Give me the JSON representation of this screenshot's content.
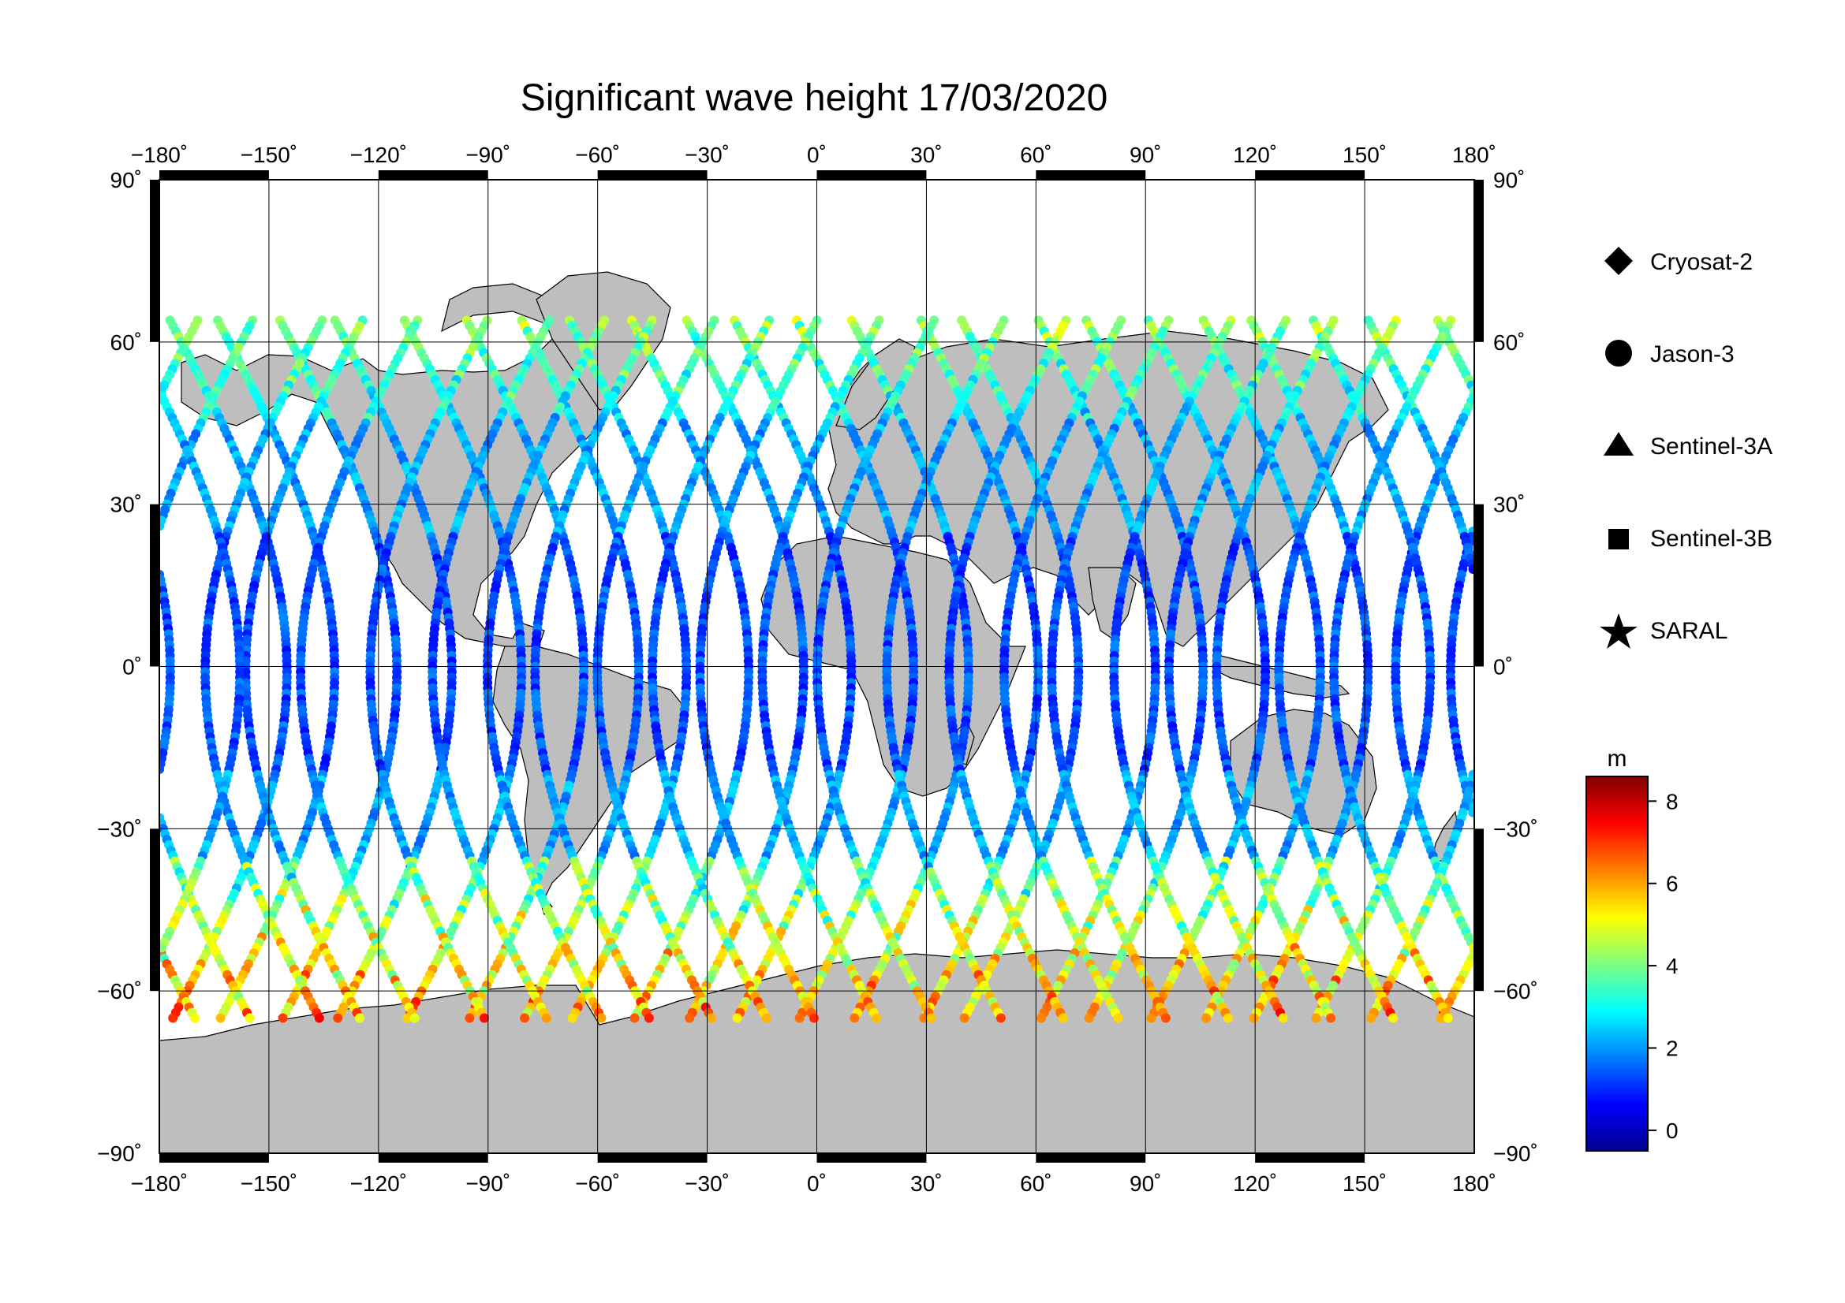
{
  "title": "Significant wave height 17/03/2020",
  "map": {
    "lon_ticks": [
      "−180˚",
      "−150˚",
      "−120˚",
      "−90˚",
      "−60˚",
      "−30˚",
      "0˚",
      "30˚",
      "60˚",
      "90˚",
      "120˚",
      "150˚",
      "180˚"
    ],
    "lat_ticks": [
      "90˚",
      "60˚",
      "30˚",
      "0˚",
      "−30˚",
      "−60˚",
      "−90˚"
    ],
    "land_color": "#bebebe",
    "ocean_color": "#ffffff"
  },
  "legend": {
    "items": [
      {
        "label": "Cryosat-2",
        "symbol": "diamond"
      },
      {
        "label": "Jason-3",
        "symbol": "circle"
      },
      {
        "label": "Sentinel-3A",
        "symbol": "triangle"
      },
      {
        "label": "Sentinel-3B",
        "symbol": "square"
      },
      {
        "label": "SARAL",
        "symbol": "star"
      }
    ]
  },
  "colorbar": {
    "unit": "m",
    "ticks": [
      "8",
      "6",
      "4",
      "2",
      "0"
    ],
    "stops": [
      "#00008f",
      "#0000ff",
      "#007fff",
      "#00ffff",
      "#7fff7f",
      "#ffff00",
      "#ff7f00",
      "#ff0000",
      "#7f0000"
    ]
  }
}
